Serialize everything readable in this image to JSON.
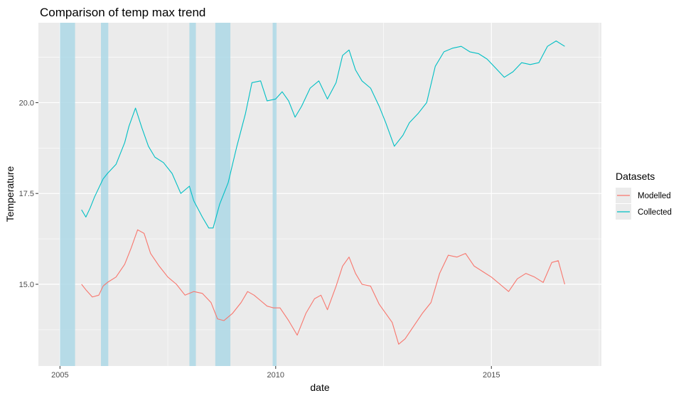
{
  "chart_data": {
    "type": "line",
    "title": "Comparison of temp max trend",
    "xlabel": "date",
    "ylabel": "Temperature",
    "x_is_date": true,
    "xlim": [
      2004.5,
      2017.55
    ],
    "ylim": [
      12.75,
      22.2
    ],
    "x_ticks": [
      2005,
      2010,
      2015
    ],
    "x_tick_labels": [
      "2005",
      "2010",
      "2015"
    ],
    "y_ticks": [
      15.0,
      17.5,
      20.0
    ],
    "y_tick_labels": [
      "15.0",
      "17.5",
      "20.0"
    ],
    "grid": true,
    "panel_background": "#ebebeb",
    "grid_color": "#ffffff",
    "legend": {
      "title": "Datasets",
      "position": "right",
      "entries": [
        {
          "label": "Modelled",
          "color": "#f8766d"
        },
        {
          "label": "Collected",
          "color": "#00bfc4"
        }
      ]
    },
    "highlight_color": "#add8e6",
    "highlight_ranges": [
      [
        2005.0,
        2005.35
      ],
      [
        2005.95,
        2006.12
      ],
      [
        2008.0,
        2008.15
      ],
      [
        2008.6,
        2008.95
      ],
      [
        2009.93,
        2010.02
      ]
    ],
    "series": [
      {
        "name": "Collected",
        "color": "#00bfc4",
        "x": [
          2005.5,
          2005.6,
          2005.7,
          2005.8,
          2006.0,
          2006.1,
          2006.3,
          2006.5,
          2006.6,
          2006.75,
          2006.9,
          2007.05,
          2007.2,
          2007.4,
          2007.6,
          2007.8,
          2008.0,
          2008.1,
          2008.3,
          2008.45,
          2008.55,
          2008.7,
          2008.9,
          2009.1,
          2009.3,
          2009.45,
          2009.65,
          2009.8,
          2010.0,
          2010.15,
          2010.3,
          2010.45,
          2010.6,
          2010.8,
          2011.0,
          2011.2,
          2011.4,
          2011.55,
          2011.7,
          2011.85,
          2012.0,
          2012.2,
          2012.4,
          2012.55,
          2012.75,
          2012.95,
          2013.1,
          2013.3,
          2013.5,
          2013.7,
          2013.9,
          2014.1,
          2014.3,
          2014.5,
          2014.7,
          2014.9,
          2015.1,
          2015.3,
          2015.5,
          2015.7,
          2015.9,
          2016.1,
          2016.3,
          2016.5,
          2016.7
        ],
        "y": [
          17.05,
          16.85,
          17.1,
          17.4,
          17.9,
          18.05,
          18.3,
          18.9,
          19.35,
          19.85,
          19.3,
          18.8,
          18.5,
          18.35,
          18.05,
          17.5,
          17.7,
          17.3,
          16.85,
          16.55,
          16.55,
          17.2,
          17.8,
          18.8,
          19.7,
          20.55,
          20.6,
          20.05,
          20.1,
          20.3,
          20.05,
          19.6,
          19.9,
          20.4,
          20.6,
          20.1,
          20.55,
          21.3,
          21.45,
          20.9,
          20.6,
          20.4,
          19.9,
          19.45,
          18.8,
          19.1,
          19.45,
          19.7,
          20.0,
          21.0,
          21.4,
          21.5,
          21.55,
          21.4,
          21.35,
          21.2,
          20.95,
          20.7,
          20.85,
          21.1,
          21.05,
          21.1,
          21.55,
          21.7,
          21.55
        ]
      },
      {
        "name": "Modelled",
        "color": "#f8766d",
        "x": [
          2005.5,
          2005.6,
          2005.75,
          2005.9,
          2006.0,
          2006.1,
          2006.3,
          2006.5,
          2006.65,
          2006.8,
          2006.95,
          2007.1,
          2007.3,
          2007.5,
          2007.7,
          2007.9,
          2008.1,
          2008.3,
          2008.5,
          2008.65,
          2008.8,
          2009.0,
          2009.2,
          2009.35,
          2009.5,
          2009.65,
          2009.8,
          2009.95,
          2010.1,
          2010.3,
          2010.5,
          2010.7,
          2010.9,
          2011.05,
          2011.2,
          2011.4,
          2011.55,
          2011.7,
          2011.85,
          2012.0,
          2012.2,
          2012.4,
          2012.55,
          2012.7,
          2012.85,
          2013.0,
          2013.2,
          2013.4,
          2013.6,
          2013.8,
          2014.0,
          2014.2,
          2014.4,
          2014.6,
          2014.8,
          2015.0,
          2015.2,
          2015.4,
          2015.6,
          2015.8,
          2016.0,
          2016.2,
          2016.4,
          2016.55,
          2016.7
        ],
        "y": [
          15.0,
          14.85,
          14.65,
          14.7,
          14.95,
          15.05,
          15.2,
          15.55,
          16.0,
          16.5,
          16.4,
          15.85,
          15.5,
          15.2,
          15.0,
          14.7,
          14.8,
          14.75,
          14.5,
          14.05,
          14.0,
          14.2,
          14.5,
          14.8,
          14.7,
          14.55,
          14.4,
          14.35,
          14.35,
          14.0,
          13.6,
          14.2,
          14.6,
          14.7,
          14.3,
          14.95,
          15.5,
          15.75,
          15.3,
          15.0,
          14.95,
          14.45,
          14.2,
          13.95,
          13.35,
          13.5,
          13.85,
          14.2,
          14.5,
          15.3,
          15.8,
          15.75,
          15.85,
          15.5,
          15.35,
          15.2,
          15.0,
          14.8,
          15.15,
          15.3,
          15.2,
          15.05,
          15.6,
          15.65,
          15.0
        ]
      }
    ]
  }
}
